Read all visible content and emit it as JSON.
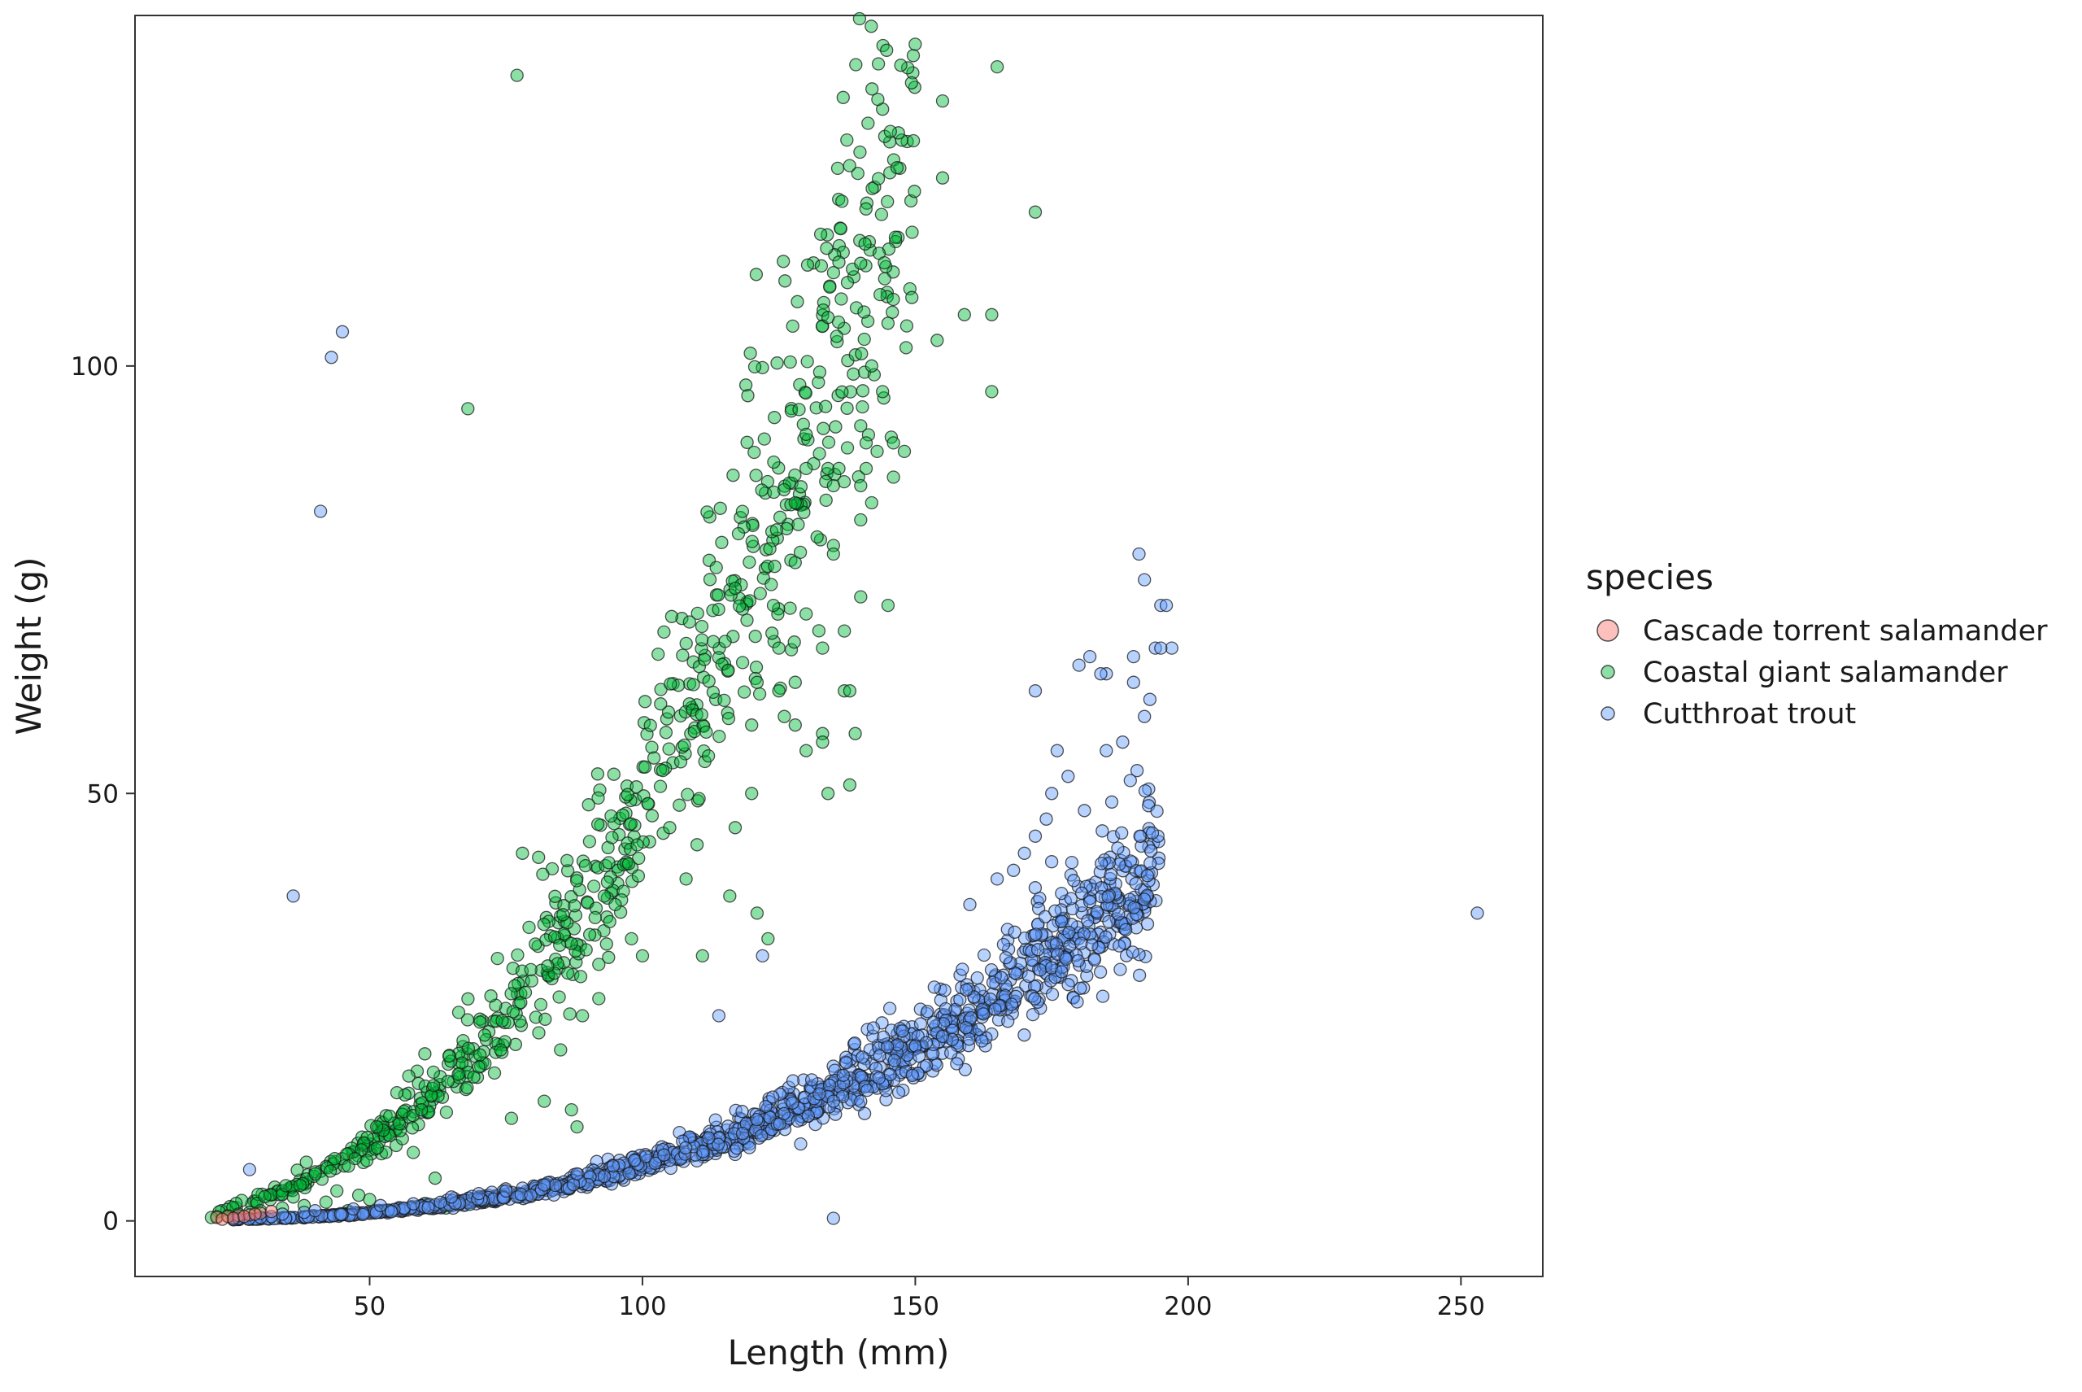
{
  "chart_data": {
    "type": "scatter",
    "xlabel": "Length (mm)",
    "ylabel": "Weight (g)",
    "xlim": [
      7,
      265
    ],
    "ylim": [
      -6.5,
      141
    ],
    "x_ticks": [
      {
        "value": 50,
        "label": "50"
      },
      {
        "value": 100,
        "label": "100"
      },
      {
        "value": 150,
        "label": "150"
      },
      {
        "value": 200,
        "label": "200"
      },
      {
        "value": 250,
        "label": "250"
      }
    ],
    "y_ticks": [
      {
        "value": 0,
        "label": "0"
      },
      {
        "value": 50,
        "label": "50"
      },
      {
        "value": 100,
        "label": "100"
      }
    ],
    "grid": false,
    "legend": {
      "title": "species",
      "position": "right"
    },
    "series": [
      {
        "name": "Cascade torrent salamander",
        "color": "#F8766D",
        "points": [
          [
            22,
            0.4
          ],
          [
            24,
            0.5
          ],
          [
            26,
            0.6
          ],
          [
            28,
            0.7
          ],
          [
            25,
            0.3
          ],
          [
            30,
            0.9
          ],
          [
            23,
            0.2
          ],
          [
            27,
            0.5
          ],
          [
            32,
            1.1
          ],
          [
            29,
            0.8
          ]
        ]
      },
      {
        "name": "Coastal giant salamander",
        "color": "#00BA38",
        "curve": {
          "a": 0.00062,
          "b": 2.45,
          "x_min": 22,
          "x_max": 150,
          "n": 700,
          "spread": 0.12,
          "seed": 7
        },
        "points": [
          [
            77,
            134
          ],
          [
            165,
            135
          ],
          [
            155,
            131
          ],
          [
            155,
            122
          ],
          [
            172,
            118
          ],
          [
            140,
            112
          ],
          [
            145,
            105
          ],
          [
            159,
            106
          ],
          [
            164,
            106
          ],
          [
            154,
            103
          ],
          [
            164,
            97
          ],
          [
            68,
            95
          ],
          [
            142,
            100
          ],
          [
            144,
            97
          ],
          [
            130,
            92
          ],
          [
            140,
            93
          ],
          [
            141,
            91
          ],
          [
            143,
            90
          ],
          [
            146,
            91
          ],
          [
            148,
            90
          ],
          [
            130,
            88
          ],
          [
            134,
            88
          ],
          [
            136,
            88
          ],
          [
            141,
            88
          ],
          [
            146,
            87
          ],
          [
            135,
            86
          ],
          [
            140,
            86
          ],
          [
            142,
            84
          ],
          [
            128,
            84
          ],
          [
            140,
            82
          ],
          [
            132,
            80
          ],
          [
            135,
            79
          ],
          [
            128,
            77
          ],
          [
            135,
            78
          ],
          [
            140,
            73
          ],
          [
            145,
            72
          ],
          [
            117,
            74
          ],
          [
            124,
            72
          ],
          [
            130,
            71
          ],
          [
            137,
            69
          ],
          [
            125,
            67
          ],
          [
            133,
            67
          ],
          [
            121,
            63
          ],
          [
            125,
            62
          ],
          [
            128,
            63
          ],
          [
            137,
            62
          ],
          [
            138,
            62
          ],
          [
            120,
            58
          ],
          [
            128,
            58
          ],
          [
            126,
            59
          ],
          [
            133,
            57
          ],
          [
            139,
            57
          ],
          [
            133,
            56
          ],
          [
            130,
            55
          ],
          [
            138,
            51
          ],
          [
            134,
            50
          ],
          [
            120,
            50
          ],
          [
            117,
            46
          ],
          [
            105,
            46
          ],
          [
            110,
            44
          ],
          [
            108,
            40
          ],
          [
            116,
            38
          ],
          [
            121,
            36
          ],
          [
            123,
            33
          ],
          [
            111,
            31
          ],
          [
            93,
            38
          ],
          [
            95,
            37
          ],
          [
            94,
            35
          ],
          [
            92,
            30
          ],
          [
            78,
            43
          ],
          [
            98,
            33
          ],
          [
            100,
            31
          ],
          [
            92,
            26
          ],
          [
            89,
            24
          ],
          [
            81,
            22
          ],
          [
            74,
            20
          ],
          [
            70,
            18
          ],
          [
            85,
            20
          ],
          [
            82,
            14
          ],
          [
            76,
            12
          ],
          [
            87,
            13
          ],
          [
            88,
            11
          ],
          [
            55,
            15
          ],
          [
            58,
            8
          ],
          [
            62,
            5
          ],
          [
            44,
            3.5
          ],
          [
            60,
            2
          ],
          [
            64,
            1.5
          ],
          [
            46,
            1.2
          ],
          [
            52,
            1.0
          ],
          [
            50,
            2.5
          ],
          [
            48,
            3.0
          ],
          [
            42,
            2.2
          ],
          [
            38,
            1.8
          ],
          [
            36,
            2.8
          ],
          [
            34,
            1.5
          ],
          [
            26,
            0.8
          ],
          [
            24,
            0.6
          ],
          [
            22,
            0.5
          ],
          [
            21,
            0.4
          ],
          [
            28,
            1.0
          ],
          [
            30,
            1.2
          ]
        ]
      },
      {
        "name": "Cutthroat trout",
        "color": "#619CFF",
        "curve": {
          "a": 1.8e-05,
          "b": 2.78,
          "x_min": 24,
          "x_max": 195,
          "n": 1300,
          "spread": 0.11,
          "seed": 13
        },
        "points": [
          [
            45,
            104
          ],
          [
            43,
            101
          ],
          [
            41,
            83
          ],
          [
            36,
            38
          ],
          [
            253,
            36
          ],
          [
            28,
            6
          ],
          [
            135,
            0.3
          ],
          [
            129,
            9
          ],
          [
            140,
            14
          ],
          [
            135,
            14
          ],
          [
            122,
            31
          ],
          [
            114,
            24
          ],
          [
            191,
            78
          ],
          [
            192,
            75
          ],
          [
            195,
            72
          ],
          [
            196,
            72
          ],
          [
            197,
            67
          ],
          [
            194,
            67
          ],
          [
            195,
            67
          ],
          [
            190,
            66
          ],
          [
            193,
            61
          ],
          [
            192,
            59
          ],
          [
            182,
            66
          ],
          [
            180,
            65
          ],
          [
            185,
            64
          ],
          [
            184,
            64
          ],
          [
            188,
            56
          ],
          [
            186,
            49
          ],
          [
            181,
            48
          ],
          [
            178,
            52
          ],
          [
            175,
            50
          ],
          [
            185,
            55
          ],
          [
            190,
            63
          ],
          [
            174,
            47
          ],
          [
            172,
            45
          ],
          [
            165,
            40
          ],
          [
            160,
            37
          ],
          [
            170,
            43
          ],
          [
            168,
            41
          ],
          [
            176,
            55
          ],
          [
            172,
            62
          ],
          [
            38,
            1
          ],
          [
            32,
            0.5
          ],
          [
            30,
            0.4
          ],
          [
            26,
            0.3
          ],
          [
            34,
            0.8
          ],
          [
            40,
            1.2
          ],
          [
            47,
            1.4
          ],
          [
            52,
            1.8
          ],
          [
            58,
            2.0
          ],
          [
            65,
            2.8
          ],
          [
            70,
            3.2
          ],
          [
            75,
            3.5
          ],
          [
            82,
            4.2
          ],
          [
            88,
            5.5
          ],
          [
            93,
            5.2
          ]
        ]
      }
    ]
  }
}
